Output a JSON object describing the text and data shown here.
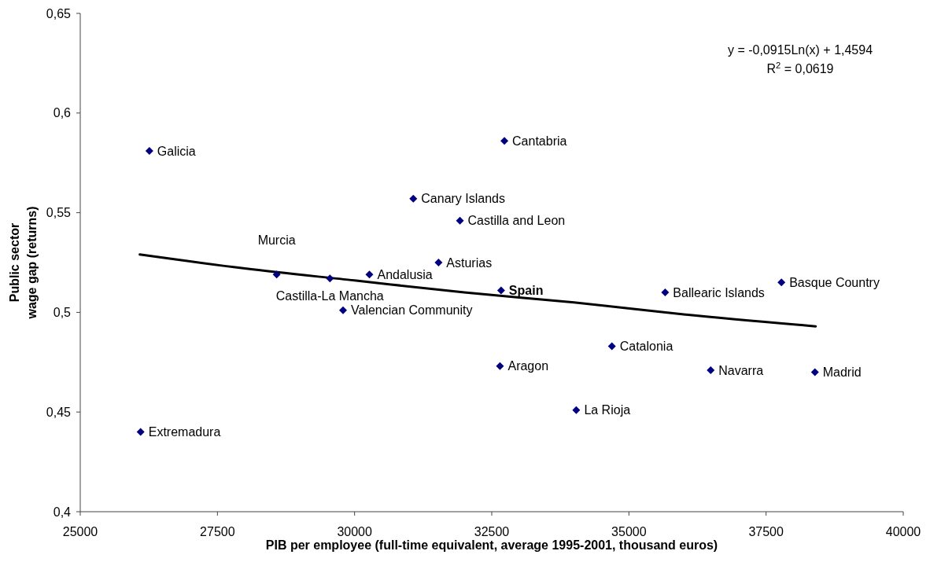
{
  "chart_data": {
    "type": "scatter",
    "xlabel": "PIB per employee (full-time equivalent, average 1995-2001, thousand euros)",
    "ylabel": "Public sector\nwage gap (returns)",
    "xlim": [
      25000,
      40000
    ],
    "xticks": [
      25000,
      27500,
      30000,
      32500,
      35000,
      37500,
      40000
    ],
    "ylim": [
      0.4,
      0.65
    ],
    "yticks": [
      {
        "value": 0.4,
        "label": "0,4"
      },
      {
        "value": 0.45,
        "label": "0,45"
      },
      {
        "value": 0.5,
        "label": "0,5"
      },
      {
        "value": 0.55,
        "label": "0,55"
      },
      {
        "value": 0.6,
        "label": "0,6"
      },
      {
        "value": 0.65,
        "label": "0,65"
      }
    ],
    "marker": "diamond",
    "series": [
      {
        "color": "#000080",
        "x": [
          26260,
          28580,
          29550,
          30270,
          29790,
          26100,
          32730,
          31070,
          31920,
          31530,
          32650,
          34690,
          34040,
          35660,
          37780,
          36490,
          38390
        ],
        "values": [
          0.581,
          0.519,
          0.517,
          0.519,
          0.501,
          0.44,
          0.586,
          0.557,
          0.546,
          0.525,
          0.473,
          0.483,
          0.451,
          0.51,
          0.515,
          0.471,
          0.47
        ]
      },
      {
        "name": "Spain",
        "color": "#000080",
        "x": [
          32670
        ],
        "values": [
          0.511
        ]
      },
      {
        "type": "line",
        "color": "#000000",
        "marker": "none",
        "line_style": "solid",
        "x": [
          26085,
          28000,
          30000,
          32000,
          34000,
          36000,
          38404
        ],
        "values": [
          0.529,
          0.522,
          0.516,
          0.51,
          0.505,
          0.499,
          0.493
        ]
      }
    ],
    "annotations": [
      {
        "text": "Galicia",
        "x": 26260,
        "y": 0.581
      },
      {
        "text": "Murcia",
        "x": 28580,
        "y": 0.519
      },
      {
        "text": "Castilla-La Mancha",
        "x": 29550,
        "y": 0.517
      },
      {
        "text": "Andalusia",
        "x": 30270,
        "y": 0.519
      },
      {
        "text": "Valencian Community",
        "x": 29790,
        "y": 0.501
      },
      {
        "text": "Extremadura",
        "x": 26100,
        "y": 0.44
      },
      {
        "text": "Cantabria",
        "x": 32730,
        "y": 0.586
      },
      {
        "text": "Canary Islands",
        "x": 31070,
        "y": 0.557
      },
      {
        "text": "Castilla and Leon",
        "x": 31920,
        "y": 0.546
      },
      {
        "text": "Asturias",
        "x": 31530,
        "y": 0.525
      },
      {
        "text": "Aragon",
        "x": 32650,
        "y": 0.473
      },
      {
        "text": "Catalonia",
        "x": 34690,
        "y": 0.483
      },
      {
        "text": "La Rioja",
        "x": 34040,
        "y": 0.451
      },
      {
        "text": "Ballearic Islands",
        "x": 35660,
        "y": 0.51
      },
      {
        "text": "Basque Country",
        "x": 37780,
        "y": 0.515
      },
      {
        "text": "Navarra",
        "x": 36490,
        "y": 0.471
      },
      {
        "text": "Madrid",
        "x": 38390,
        "y": 0.47
      },
      "y = -0,0915Ln(x) + 1,4594",
      "R$^{2}$ = 0,0619"
    ]
  }
}
